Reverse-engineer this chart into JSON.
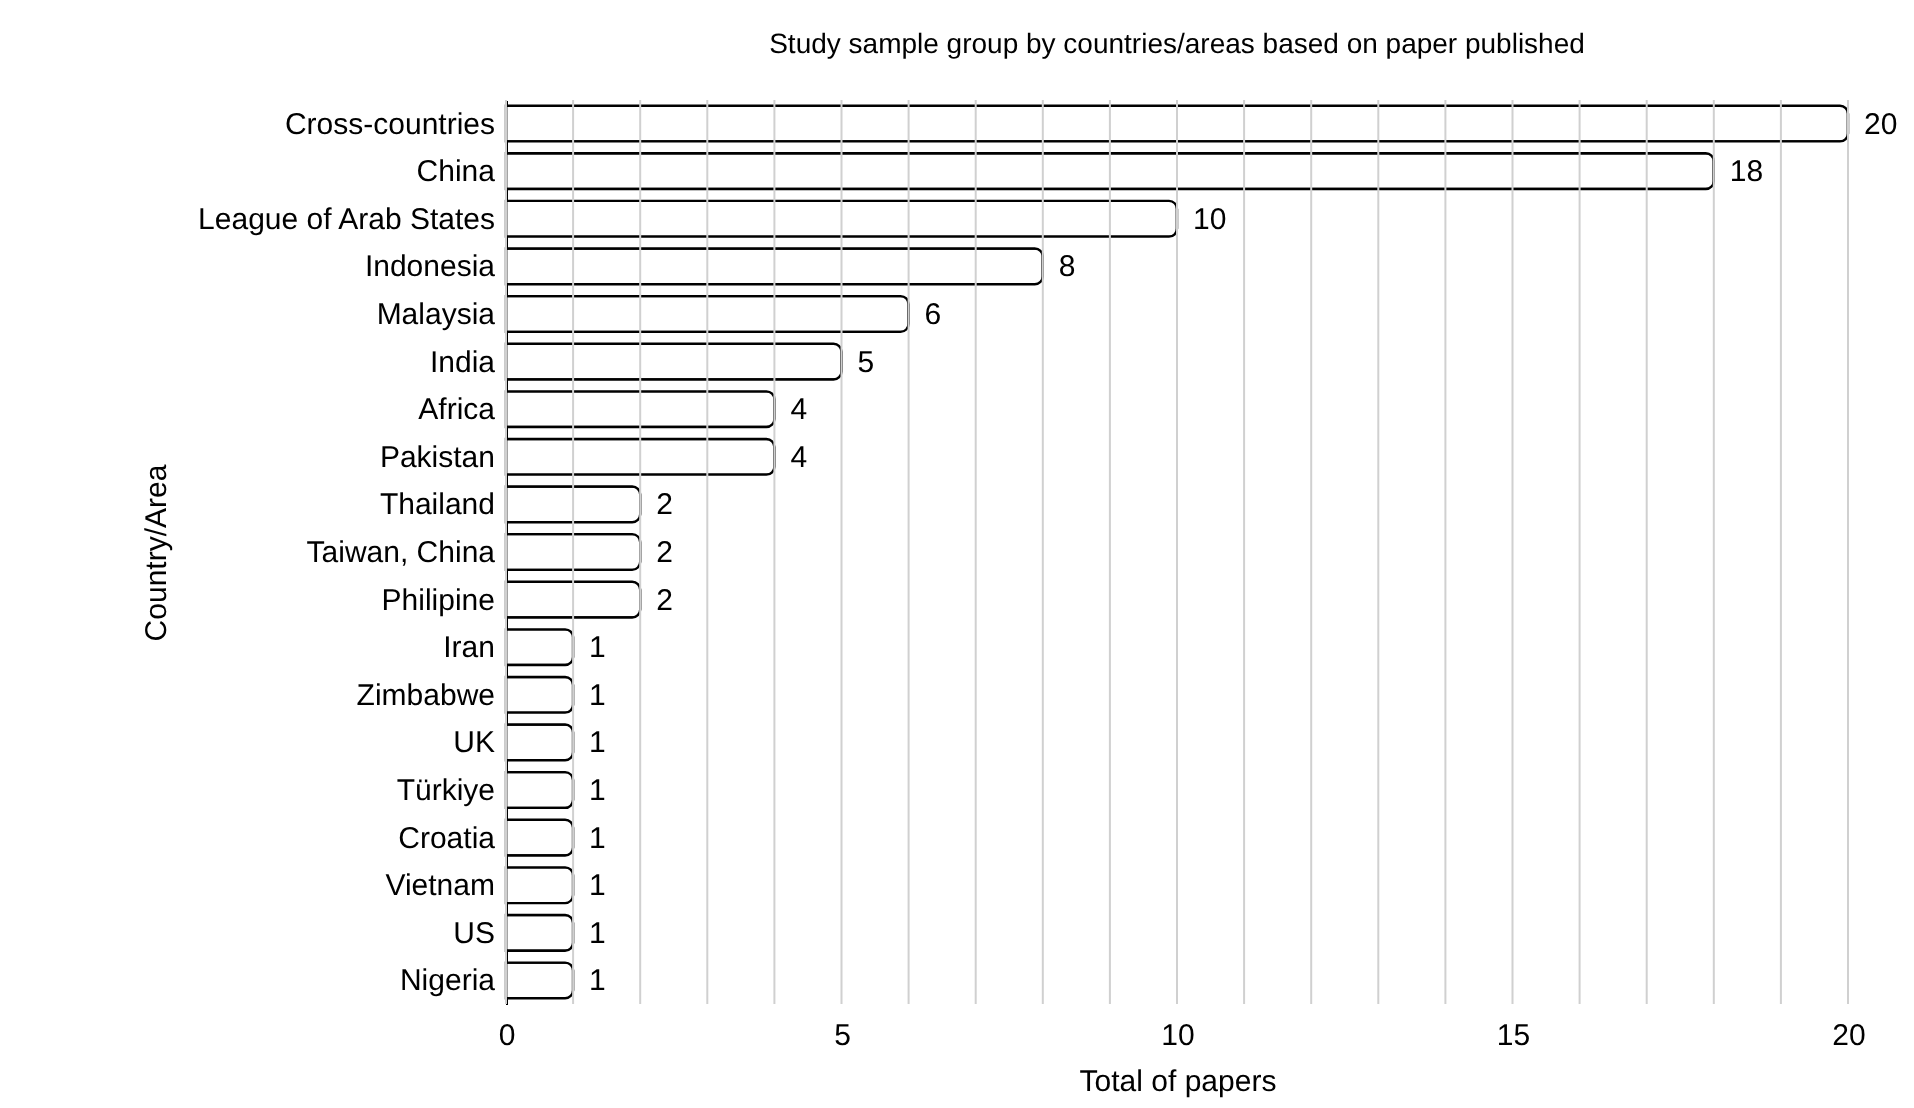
{
  "chart_data": {
    "type": "bar",
    "orientation": "horizontal",
    "title": "Study sample group by countries/areas based on paper published",
    "xlabel": "Total of papers",
    "ylabel": "Country/Area",
    "categories": [
      "Cross-countries",
      "China",
      "League of Arab States",
      "Indonesia",
      "Malaysia",
      "India",
      "Africa",
      "Pakistan",
      "Thailand",
      "Taiwan, China",
      "Philipine",
      "Iran",
      "Zimbabwe",
      "UK",
      "Türkiye",
      "Croatia",
      "Vietnam",
      "US",
      "Nigeria"
    ],
    "values": [
      20,
      18,
      10,
      8,
      6,
      5,
      4,
      4,
      2,
      2,
      2,
      1,
      1,
      1,
      1,
      1,
      1,
      1,
      1
    ],
    "color": "#ffffff",
    "data_labels": true,
    "grid": "x",
    "xlim": [
      0,
      20
    ],
    "xticks": [
      0,
      {
        "value": 1,
        "label": null
      },
      {
        "value": 2,
        "label": null
      },
      {
        "value": 3,
        "label": null
      },
      {
        "value": 4,
        "label": null
      },
      5,
      {
        "value": 6,
        "label": null
      },
      {
        "value": 7,
        "label": null
      },
      {
        "value": 8,
        "label": null
      },
      {
        "value": 9,
        "label": null
      },
      10,
      {
        "value": 11,
        "label": null
      },
      {
        "value": 12,
        "label": null
      },
      {
        "value": 13,
        "label": null
      },
      {
        "value": 14,
        "label": null
      },
      15,
      {
        "value": 16,
        "label": null
      },
      {
        "value": 17,
        "label": null
      },
      {
        "value": 18,
        "label": null
      },
      {
        "value": 19,
        "label": null
      },
      20
    ]
  }
}
